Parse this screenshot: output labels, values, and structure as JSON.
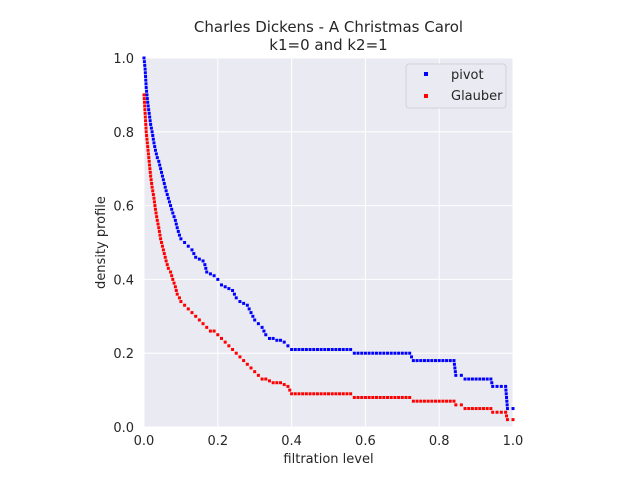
{
  "chart_data": {
    "type": "scatter",
    "title": "Charles Dickens - A Christmas Carol",
    "subtitle": "k1=0 and k2=1",
    "xlabel": "filtration level",
    "ylabel": "density profile",
    "xlim": [
      0.0,
      1.0
    ],
    "ylim": [
      0.0,
      1.0
    ],
    "xticks": [
      "0.0",
      "0.2",
      "0.4",
      "0.6",
      "0.8",
      "1.0"
    ],
    "yticks": [
      "0.0",
      "0.2",
      "0.4",
      "0.6",
      "0.8",
      "1.0"
    ],
    "grid": true,
    "legend_position": "top-right",
    "series": [
      {
        "name": "pivot",
        "color": "#0000ff",
        "points": [
          [
            0.0,
            1.0
          ],
          [
            0.003,
            0.97
          ],
          [
            0.006,
            0.92
          ],
          [
            0.01,
            0.88
          ],
          [
            0.014,
            0.85
          ],
          [
            0.018,
            0.82
          ],
          [
            0.022,
            0.8
          ],
          [
            0.027,
            0.77
          ],
          [
            0.031,
            0.75
          ],
          [
            0.036,
            0.73
          ],
          [
            0.04,
            0.72
          ],
          [
            0.045,
            0.7
          ],
          [
            0.05,
            0.68
          ],
          [
            0.055,
            0.66
          ],
          [
            0.06,
            0.64
          ],
          [
            0.066,
            0.62
          ],
          [
            0.072,
            0.6
          ],
          [
            0.078,
            0.58
          ],
          [
            0.085,
            0.56
          ],
          [
            0.09,
            0.54
          ],
          [
            0.096,
            0.52
          ],
          [
            0.1,
            0.51
          ],
          [
            0.11,
            0.5
          ],
          [
            0.12,
            0.49
          ],
          [
            0.13,
            0.48
          ],
          [
            0.14,
            0.46
          ],
          [
            0.15,
            0.455
          ],
          [
            0.16,
            0.45
          ],
          [
            0.165,
            0.44
          ],
          [
            0.17,
            0.42
          ],
          [
            0.18,
            0.415
          ],
          [
            0.19,
            0.41
          ],
          [
            0.2,
            0.4
          ],
          [
            0.21,
            0.385
          ],
          [
            0.22,
            0.38
          ],
          [
            0.23,
            0.375
          ],
          [
            0.24,
            0.37
          ],
          [
            0.245,
            0.36
          ],
          [
            0.25,
            0.35
          ],
          [
            0.26,
            0.34
          ],
          [
            0.27,
            0.335
          ],
          [
            0.28,
            0.33
          ],
          [
            0.29,
            0.31
          ],
          [
            0.3,
            0.29
          ],
          [
            0.31,
            0.28
          ],
          [
            0.32,
            0.27
          ],
          [
            0.33,
            0.25
          ],
          [
            0.34,
            0.24
          ],
          [
            0.35,
            0.24
          ],
          [
            0.36,
            0.235
          ],
          [
            0.37,
            0.235
          ],
          [
            0.38,
            0.23
          ],
          [
            0.39,
            0.22
          ],
          [
            0.4,
            0.21
          ],
          [
            0.45,
            0.21
          ],
          [
            0.5,
            0.21
          ],
          [
            0.56,
            0.21
          ],
          [
            0.57,
            0.2
          ],
          [
            0.62,
            0.2
          ],
          [
            0.66,
            0.2
          ],
          [
            0.72,
            0.2
          ],
          [
            0.73,
            0.18
          ],
          [
            0.78,
            0.18
          ],
          [
            0.84,
            0.18
          ],
          [
            0.845,
            0.14
          ],
          [
            0.86,
            0.14
          ],
          [
            0.87,
            0.13
          ],
          [
            0.9,
            0.13
          ],
          [
            0.94,
            0.13
          ],
          [
            0.945,
            0.11
          ],
          [
            0.98,
            0.11
          ],
          [
            0.985,
            0.05
          ],
          [
            1.0,
            0.05
          ]
        ]
      },
      {
        "name": "Glauber",
        "color": "#ff0000",
        "points": [
          [
            0.0,
            0.9
          ],
          [
            0.003,
            0.85
          ],
          [
            0.006,
            0.8
          ],
          [
            0.01,
            0.76
          ],
          [
            0.014,
            0.72
          ],
          [
            0.018,
            0.68
          ],
          [
            0.022,
            0.65
          ],
          [
            0.027,
            0.62
          ],
          [
            0.031,
            0.59
          ],
          [
            0.036,
            0.56
          ],
          [
            0.04,
            0.54
          ],
          [
            0.045,
            0.51
          ],
          [
            0.05,
            0.49
          ],
          [
            0.055,
            0.47
          ],
          [
            0.06,
            0.45
          ],
          [
            0.066,
            0.43
          ],
          [
            0.072,
            0.42
          ],
          [
            0.078,
            0.4
          ],
          [
            0.085,
            0.38
          ],
          [
            0.09,
            0.36
          ],
          [
            0.096,
            0.35
          ],
          [
            0.1,
            0.34
          ],
          [
            0.11,
            0.33
          ],
          [
            0.12,
            0.32
          ],
          [
            0.13,
            0.31
          ],
          [
            0.14,
            0.3
          ],
          [
            0.15,
            0.29
          ],
          [
            0.16,
            0.28
          ],
          [
            0.17,
            0.27
          ],
          [
            0.18,
            0.26
          ],
          [
            0.19,
            0.26
          ],
          [
            0.2,
            0.25
          ],
          [
            0.21,
            0.24
          ],
          [
            0.22,
            0.23
          ],
          [
            0.23,
            0.22
          ],
          [
            0.24,
            0.21
          ],
          [
            0.25,
            0.2
          ],
          [
            0.26,
            0.19
          ],
          [
            0.27,
            0.18
          ],
          [
            0.28,
            0.17
          ],
          [
            0.29,
            0.16
          ],
          [
            0.3,
            0.15
          ],
          [
            0.31,
            0.14
          ],
          [
            0.32,
            0.13
          ],
          [
            0.33,
            0.13
          ],
          [
            0.34,
            0.125
          ],
          [
            0.35,
            0.12
          ],
          [
            0.36,
            0.12
          ],
          [
            0.37,
            0.12
          ],
          [
            0.38,
            0.115
          ],
          [
            0.39,
            0.11
          ],
          [
            0.4,
            0.09
          ],
          [
            0.45,
            0.09
          ],
          [
            0.5,
            0.09
          ],
          [
            0.56,
            0.09
          ],
          [
            0.57,
            0.08
          ],
          [
            0.62,
            0.08
          ],
          [
            0.66,
            0.08
          ],
          [
            0.72,
            0.08
          ],
          [
            0.73,
            0.07
          ],
          [
            0.78,
            0.07
          ],
          [
            0.84,
            0.07
          ],
          [
            0.845,
            0.06
          ],
          [
            0.86,
            0.06
          ],
          [
            0.87,
            0.05
          ],
          [
            0.9,
            0.05
          ],
          [
            0.94,
            0.05
          ],
          [
            0.945,
            0.04
          ],
          [
            0.98,
            0.04
          ],
          [
            0.985,
            0.02
          ],
          [
            1.0,
            0.02
          ]
        ]
      }
    ]
  }
}
